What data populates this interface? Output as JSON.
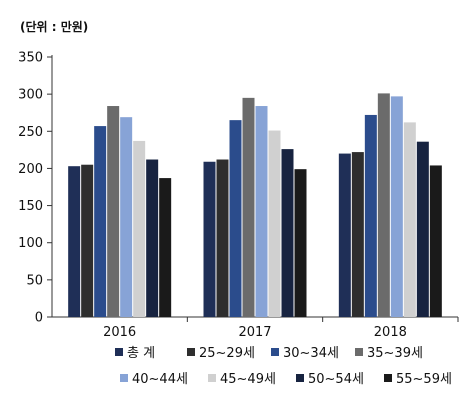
{
  "chart_data": {
    "type": "bar",
    "unit_label": "(단위 : 만원)",
    "categories": [
      "2016",
      "2017",
      "2018"
    ],
    "ylim": [
      0,
      350
    ],
    "yticks": [
      0,
      50,
      100,
      150,
      200,
      250,
      300,
      350
    ],
    "grid": false,
    "legend_position": "bottom",
    "series": [
      {
        "name": "총 계",
        "color": "#1f2f57",
        "values": [
          203,
          209,
          220
        ]
      },
      {
        "name": "25~29세",
        "color": "#2e2e2e",
        "values": [
          205,
          212,
          222
        ]
      },
      {
        "name": "30~34세",
        "color": "#2b4c8c",
        "values": [
          257,
          265,
          272
        ]
      },
      {
        "name": "35~39세",
        "color": "#6b6b6b",
        "values": [
          284,
          295,
          301
        ]
      },
      {
        "name": "40~44세",
        "color": "#87a3d6",
        "values": [
          269,
          284,
          297
        ]
      },
      {
        "name": "45~49세",
        "color": "#d0d0d0",
        "values": [
          237,
          251,
          262
        ]
      },
      {
        "name": "50~54세",
        "color": "#172340",
        "values": [
          212,
          226,
          236
        ]
      },
      {
        "name": "55~59세",
        "color": "#1a1a1a",
        "values": [
          187,
          199,
          204
        ]
      }
    ]
  }
}
